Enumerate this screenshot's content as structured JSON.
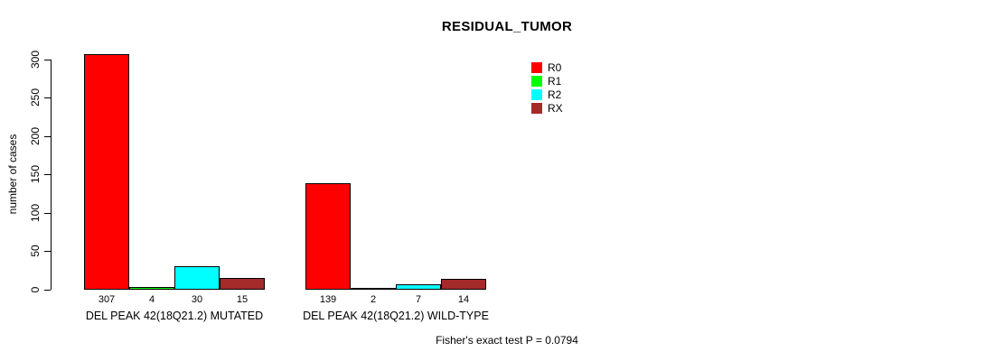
{
  "chart_data": {
    "type": "bar",
    "title": "RESIDUAL_TUMOR",
    "ylabel": "number of cases",
    "xlabel": "",
    "ylim": [
      0,
      300
    ],
    "yticks": [
      0,
      50,
      100,
      150,
      200,
      250,
      300
    ],
    "grid": false,
    "legend_position": "top-right",
    "background": "#ffffff",
    "axis_color": "#000000",
    "categories": [
      "DEL PEAK 42(18Q21.2) MUTATED",
      "DEL PEAK 42(18Q21.2) WILD-TYPE"
    ],
    "series": [
      {
        "name": "R0",
        "color": "#FF0000",
        "values": [
          307,
          139
        ]
      },
      {
        "name": "R1",
        "color": "#00FF00",
        "values": [
          4,
          2
        ]
      },
      {
        "name": "R2",
        "color": "#00FFFF",
        "values": [
          30,
          7
        ]
      },
      {
        "name": "RX",
        "color": "#A52A2A",
        "values": [
          15,
          14
        ]
      }
    ],
    "bar_value_labels": [
      [
        "307",
        "4",
        "30",
        "15"
      ],
      [
        "139",
        "2",
        "7",
        "14"
      ]
    ],
    "annotation": "Fisher's exact test P = 0.0794"
  }
}
